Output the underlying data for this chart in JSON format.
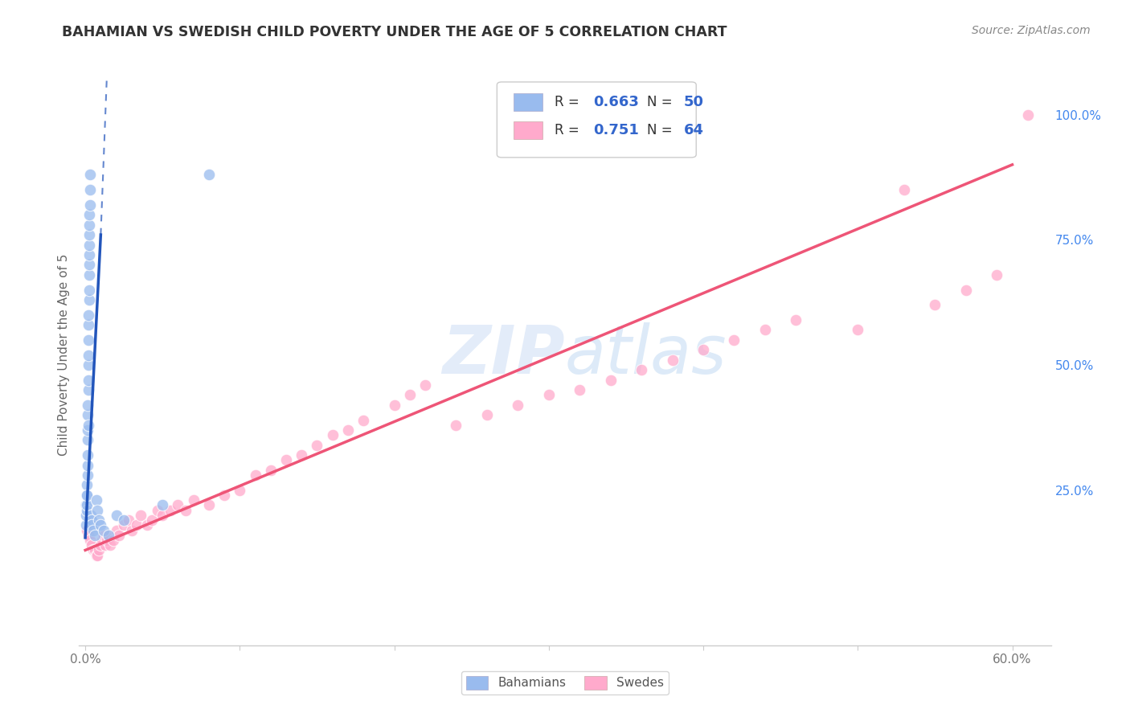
{
  "title": "BAHAMIAN VS SWEDISH CHILD POVERTY UNDER THE AGE OF 5 CORRELATION CHART",
  "source": "Source: ZipAtlas.com",
  "ylabel": "Child Poverty Under the Age of 5",
  "legend_r1": "R = 0.663",
  "legend_n1": "N = 50",
  "legend_r2": "R = 0.751",
  "legend_n2": "N = 64",
  "legend_label1": "Bahamians",
  "legend_label2": "Swedes",
  "blue_scatter_color": "#99BBEE",
  "pink_scatter_color": "#FFAACC",
  "trend_blue_color": "#2255BB",
  "trend_pink_color": "#EE5577",
  "watermark_color": "#CCDDF5",
  "title_color": "#333333",
  "source_color": "#888888",
  "axis_color": "#CCCCCC",
  "grid_color": "#DDDDDD",
  "tick_label_color_x": "#777777",
  "tick_label_color_y": "#4488EE",
  "ylabel_color": "#666666",
  "legend_text_color": "#333333",
  "legend_value_color": "#3366CC",
  "x_tick_positions": [
    0.0,
    0.1,
    0.2,
    0.3,
    0.4,
    0.5,
    0.6
  ],
  "x_tick_labels": [
    "0.0%",
    "",
    "",
    "",
    "",
    "",
    "60.0%"
  ],
  "y_tick_positions": [
    0.0,
    0.25,
    0.5,
    0.75,
    1.0
  ],
  "y_tick_labels": [
    "",
    "25.0%",
    "50.0%",
    "75.0%",
    "100.0%"
  ],
  "xlim": [
    -0.004,
    0.625
  ],
  "ylim": [
    -0.06,
    1.1
  ],
  "bahamians_x": [
    0.0005,
    0.0005,
    0.0007,
    0.0008,
    0.001,
    0.001,
    0.0012,
    0.0012,
    0.0013,
    0.0015,
    0.0015,
    0.0015,
    0.0016,
    0.0017,
    0.0017,
    0.0018,
    0.0018,
    0.0019,
    0.002,
    0.002,
    0.0021,
    0.0022,
    0.0022,
    0.0023,
    0.0023,
    0.0024,
    0.0024,
    0.0025,
    0.0025,
    0.0026,
    0.0027,
    0.0028,
    0.003,
    0.003,
    0.0032,
    0.0035,
    0.004,
    0.004,
    0.005,
    0.006,
    0.007,
    0.008,
    0.009,
    0.01,
    0.012,
    0.015,
    0.02,
    0.025,
    0.05,
    0.08
  ],
  "bahamians_y": [
    0.18,
    0.2,
    0.22,
    0.21,
    0.24,
    0.22,
    0.26,
    0.24,
    0.28,
    0.3,
    0.32,
    0.35,
    0.37,
    0.4,
    0.42,
    0.45,
    0.38,
    0.47,
    0.5,
    0.52,
    0.55,
    0.58,
    0.6,
    0.63,
    0.65,
    0.68,
    0.7,
    0.72,
    0.74,
    0.76,
    0.78,
    0.8,
    0.82,
    0.85,
    0.88,
    0.2,
    0.19,
    0.18,
    0.17,
    0.16,
    0.23,
    0.21,
    0.19,
    0.18,
    0.17,
    0.16,
    0.2,
    0.19,
    0.22,
    0.88
  ],
  "swedes_x": [
    0.001,
    0.002,
    0.003,
    0.004,
    0.005,
    0.006,
    0.007,
    0.008,
    0.009,
    0.01,
    0.011,
    0.012,
    0.013,
    0.014,
    0.015,
    0.016,
    0.018,
    0.02,
    0.022,
    0.025,
    0.028,
    0.03,
    0.033,
    0.036,
    0.04,
    0.043,
    0.047,
    0.05,
    0.055,
    0.06,
    0.065,
    0.07,
    0.08,
    0.09,
    0.1,
    0.11,
    0.12,
    0.13,
    0.14,
    0.15,
    0.16,
    0.17,
    0.18,
    0.2,
    0.21,
    0.22,
    0.24,
    0.26,
    0.28,
    0.3,
    0.32,
    0.34,
    0.36,
    0.38,
    0.4,
    0.42,
    0.44,
    0.46,
    0.5,
    0.53,
    0.55,
    0.57,
    0.59,
    0.61
  ],
  "swedes_y": [
    0.17,
    0.16,
    0.15,
    0.14,
    0.13,
    0.13,
    0.12,
    0.12,
    0.13,
    0.14,
    0.15,
    0.16,
    0.14,
    0.15,
    0.16,
    0.14,
    0.15,
    0.17,
    0.16,
    0.18,
    0.19,
    0.17,
    0.18,
    0.2,
    0.18,
    0.19,
    0.21,
    0.2,
    0.21,
    0.22,
    0.21,
    0.23,
    0.22,
    0.24,
    0.25,
    0.28,
    0.29,
    0.31,
    0.32,
    0.34,
    0.36,
    0.37,
    0.39,
    0.42,
    0.44,
    0.46,
    0.38,
    0.4,
    0.42,
    0.44,
    0.45,
    0.47,
    0.49,
    0.51,
    0.53,
    0.55,
    0.57,
    0.59,
    0.57,
    0.85,
    0.62,
    0.65,
    0.68,
    1.0
  ],
  "trend_blue_x0": 0.0,
  "trend_blue_y0": 0.155,
  "trend_blue_x1": 0.01,
  "trend_blue_y1": 0.76,
  "trend_blue_dashed_x1": 0.014,
  "trend_blue_dashed_y1": 1.08,
  "trend_pink_x0": 0.0,
  "trend_pink_y0": 0.13,
  "trend_pink_x1": 0.6,
  "trend_pink_y1": 0.9
}
